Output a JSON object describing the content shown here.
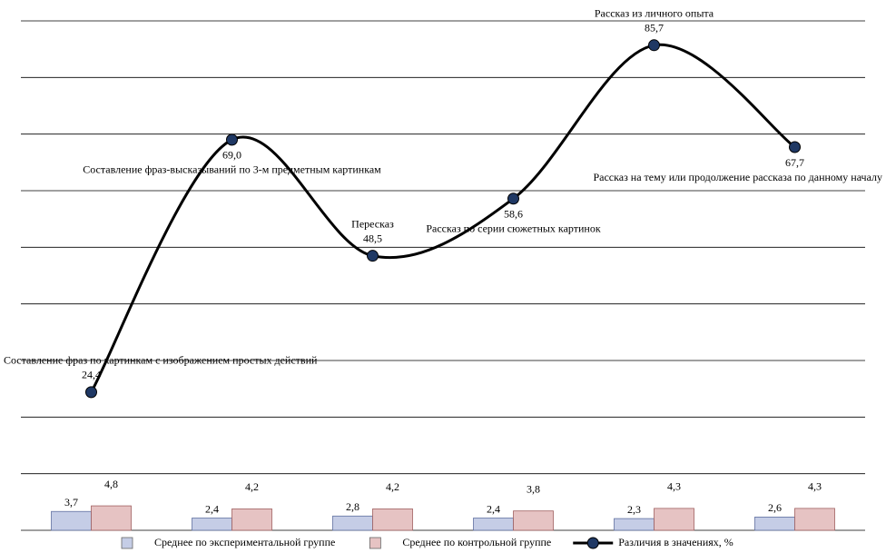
{
  "chart_data": {
    "type": "combo",
    "categories": [
      "Составление фраз по картинкам с изображением простых действий",
      "Составление фраз-высказываний по 3-м предметным картинкам",
      "Пересказ",
      "Рассказ по серии сюжетных картинок",
      "Рассказ из личного опыта",
      "Рассказ на тему или продолжение рассказа по данному началу"
    ],
    "ylim": [
      0,
      90
    ],
    "yticks": [
      0,
      10,
      20,
      30,
      40,
      50,
      60,
      70,
      80,
      90
    ],
    "y2lim": [
      0,
      100
    ],
    "grid": true,
    "legend": "bottom",
    "series": [
      {
        "name": "Среднее по экспериментальной группе",
        "color": "#c5cde6",
        "type": "bar",
        "axis": "y2",
        "values": [
          3.7,
          2.4,
          2.8,
          2.4,
          2.3,
          2.6
        ],
        "value_labels": [
          "3,7",
          "2,4",
          "2,8",
          "2,4",
          "2,3",
          "2,6"
        ]
      },
      {
        "name": "Среднее по контрольной группе",
        "color": "#e6c3c3",
        "type": "bar",
        "axis": "y2",
        "values": [
          4.8,
          4.2,
          4.2,
          3.8,
          4.3,
          4.3
        ],
        "value_labels": [
          "4,8",
          "4,2",
          "4,2",
          "3,8",
          "4,3",
          "4,3"
        ]
      },
      {
        "name": "Различия в значениях, %",
        "color": "#000000",
        "type": "line",
        "values": [
          24.4,
          69.0,
          48.5,
          58.6,
          85.7,
          67.7
        ],
        "value_labels": [
          "24,4",
          "69,0",
          "48,5",
          "58,6",
          "85,7",
          "67,7"
        ]
      }
    ]
  }
}
